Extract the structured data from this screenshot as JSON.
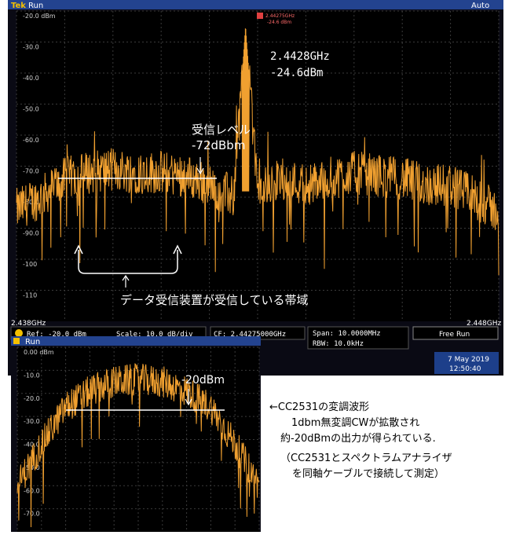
{
  "main_screen": {
    "header_left": "Run",
    "header_right": "Auto",
    "x_start": "2.438GHz",
    "x_end": "2.448GHz",
    "marker_freq": "2.44275GHz",
    "marker_level": "-24.6 dBm",
    "peak_label_freq": "2.4428GHz",
    "peak_label_level": "-24.6dBm",
    "rx_level_title": "受信レベル",
    "rx_level_value": "-72dBbm",
    "band_caption": "データ受信装置が受信している帯域",
    "status": {
      "ref": "Ref: -20.0 dBm",
      "scale": "Scale: 10.0 dB/div",
      "cf": "CF: 2.44275000GHz",
      "span": "Span:  10.0000MHz",
      "rbw": "RBW:   10.0kHz",
      "mode": "Free Run",
      "date": "7 May 2019",
      "time": "12:50:40"
    }
  },
  "inset_screen": {
    "header_left": "Run",
    "level_label": "-20dBm"
  },
  "notes": [
    "←CC2531の変調波形",
    "1dbm無変調CWが拡散され",
    "約-20dBmの出力が得られている.",
    "（CC2531とスペクトラムアナライザ",
    "を同軸ケーブルで接続して測定）"
  ],
  "chart_data": [
    {
      "type": "line",
      "title": "",
      "xlabel": "",
      "ylabel": "",
      "x_unit": "GHz",
      "xlim": [
        2.438,
        2.448
      ],
      "ylim": [
        -120,
        -20
      ],
      "y_ticks": [
        "-20.0 dBm",
        "-30.0",
        "-40.0",
        "-50.0",
        "-60.0",
        "-70.0",
        "-80.0",
        "-90.0",
        "-100",
        "-110"
      ],
      "grid": true,
      "series": [
        {
          "color": "#f0a030",
          "x": [
            2.438,
            2.4385,
            2.439,
            2.4395,
            2.44,
            2.4405,
            2.441,
            2.4415,
            2.442,
            2.4425,
            2.44275,
            2.443,
            2.4435,
            2.444,
            2.4445,
            2.445,
            2.4455,
            2.446,
            2.4465,
            2.447,
            2.4475,
            2.448
          ],
          "values": [
            -84,
            -80,
            -74,
            -72,
            -71,
            -72,
            -72,
            -73,
            -76,
            -80,
            -24.6,
            -78,
            -74,
            -76,
            -74,
            -72,
            -73,
            -74,
            -76,
            -76,
            -80,
            -85
          ]
        }
      ],
      "annotations": [
        {
          "x": 2.44275,
          "y": -24.6,
          "text": "2.4428GHz -24.6dBm"
        },
        {
          "y": -72,
          "text": "受信レベル -72dBbm"
        }
      ]
    },
    {
      "type": "line",
      "xlim": [
        0,
        1
      ],
      "ylim": [
        -80,
        0
      ],
      "y_ticks": [
        "0.00 dBm",
        "-10.0",
        "-20.0",
        "-30.0",
        "-40.0",
        "-50.0",
        "-60.0",
        "-70.0"
      ],
      "grid": true,
      "series": [
        {
          "color": "#f0a030",
          "x": [
            0.0,
            0.1,
            0.2,
            0.3,
            0.4,
            0.5,
            0.6,
            0.7,
            0.8,
            0.9,
            1.0
          ],
          "values": [
            -60,
            -42,
            -26,
            -19,
            -15,
            -14,
            -15,
            -19,
            -26,
            -42,
            -60
          ]
        }
      ],
      "annotations": [
        {
          "y": -20,
          "text": "-20dBm"
        }
      ]
    }
  ]
}
